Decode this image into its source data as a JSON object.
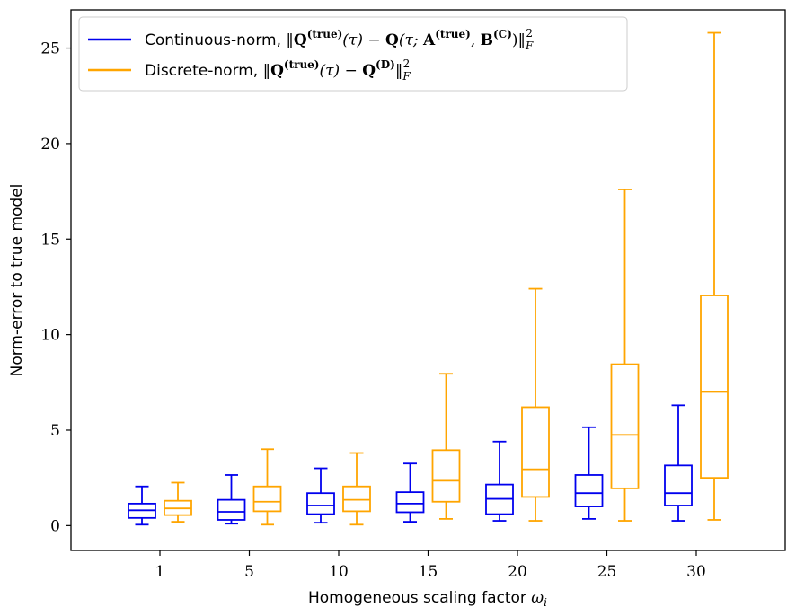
{
  "chart_data": {
    "type": "boxplot",
    "xlabel": "Homogeneous scaling factor ω",
    "xlabel_sub": "i",
    "ylabel": "Norm-error to true model",
    "ylim": [
      -1.3,
      27.0
    ],
    "yticks": [
      0,
      5,
      10,
      15,
      20,
      25
    ],
    "categories": [
      "1",
      "5",
      "10",
      "15",
      "20",
      "25",
      "30"
    ],
    "legend_position": "upper-left",
    "grid": false,
    "series": [
      {
        "name": "Continuous-norm, ‖Q(true)(τ) − Q(τ; A(true), B(C))‖²_F",
        "legend": {
          "prefix": "Continuous-norm, ",
          "math": [
            "‖",
            "Q",
            "(true)",
            "(τ) − ",
            "Q",
            "(τ; ",
            "A",
            "(true)",
            ", ",
            "B",
            "(C)",
            ")‖",
            "F",
            "2"
          ]
        },
        "color": "#0000ee",
        "boxes": [
          {
            "whislo": 0.05,
            "q1": 0.4,
            "med": 0.8,
            "q3": 1.15,
            "whishi": 2.05
          },
          {
            "whislo": 0.1,
            "q1": 0.3,
            "med": 0.72,
            "q3": 1.35,
            "whishi": 2.65
          },
          {
            "whislo": 0.15,
            "q1": 0.6,
            "med": 1.05,
            "q3": 1.7,
            "whishi": 3.0
          },
          {
            "whislo": 0.2,
            "q1": 0.7,
            "med": 1.15,
            "q3": 1.75,
            "whishi": 3.25
          },
          {
            "whislo": 0.25,
            "q1": 0.6,
            "med": 1.4,
            "q3": 2.15,
            "whishi": 4.4
          },
          {
            "whislo": 0.35,
            "q1": 1.0,
            "med": 1.7,
            "q3": 2.65,
            "whishi": 5.15
          },
          {
            "whislo": 0.25,
            "q1": 1.05,
            "med": 1.7,
            "q3": 3.15,
            "whishi": 6.3
          }
        ]
      },
      {
        "name": "Discrete-norm, ‖Q(true)(τ) − Q(D)‖²_F",
        "legend": {
          "prefix": "Discrete-norm, ",
          "math": [
            "‖",
            "Q",
            "(true)",
            "(τ) − ",
            "Q",
            "(D)",
            "‖",
            "F",
            "2"
          ]
        },
        "color": "#ffa500",
        "boxes": [
          {
            "whislo": 0.2,
            "q1": 0.55,
            "med": 0.9,
            "q3": 1.3,
            "whishi": 2.25
          },
          {
            "whislo": 0.05,
            "q1": 0.75,
            "med": 1.25,
            "q3": 2.05,
            "whishi": 4.0
          },
          {
            "whislo": 0.05,
            "q1": 0.75,
            "med": 1.35,
            "q3": 2.05,
            "whishi": 3.8
          },
          {
            "whislo": 0.35,
            "q1": 1.25,
            "med": 2.35,
            "q3": 3.95,
            "whishi": 7.95
          },
          {
            "whislo": 0.25,
            "q1": 1.5,
            "med": 2.95,
            "q3": 6.2,
            "whishi": 12.4
          },
          {
            "whislo": 0.25,
            "q1": 1.95,
            "med": 4.75,
            "q3": 8.45,
            "whishi": 17.6
          },
          {
            "whislo": 0.3,
            "q1": 2.5,
            "med": 7.0,
            "q3": 12.05,
            "whishi": 25.8
          }
        ]
      }
    ]
  }
}
